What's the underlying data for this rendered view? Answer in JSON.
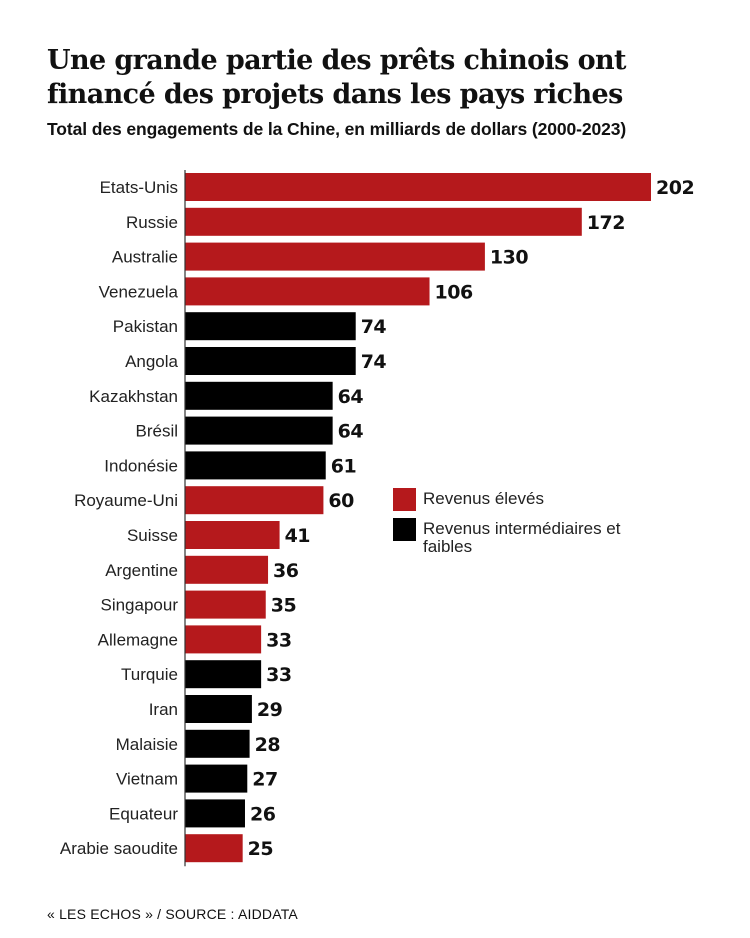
{
  "header": {
    "title": "Une grande partie des prêts chinois ont financé des projets dans les pays riches",
    "subtitle": "Total des engagements de la Chine, en milliards de dollars (2000-2023)"
  },
  "legend": {
    "items": [
      {
        "label": "Revenus élevés",
        "color": "#b5191c"
      },
      {
        "label": "Revenus intermédiaires et faibles",
        "color": "#000000"
      }
    ]
  },
  "footer": {
    "source": "« LES ECHOS » / SOURCE :  AIDDATA"
  },
  "chart_data": {
    "type": "bar",
    "orientation": "horizontal",
    "title": "Une grande partie des prêts chinois ont financé des projets dans les pays riches",
    "subtitle": "Total des engagements de la Chine, en milliards de dollars (2000-2023)",
    "xlabel": "",
    "ylabel": "",
    "xlim": [
      0,
      202
    ],
    "grid": false,
    "legend_position": "center-right",
    "colors": {
      "Revenus élevés": "#b5191c",
      "Revenus intermédiaires et faibles": "#000000"
    },
    "categories": [
      "Etats-Unis",
      "Russie",
      "Australie",
      "Venezuela",
      "Pakistan",
      "Angola",
      "Kazakhstan",
      "Brésil",
      "Indonésie",
      "Royaume-Uni",
      "Suisse",
      "Argentine",
      "Singapour",
      "Allemagne",
      "Turquie",
      "Iran",
      "Malaisie",
      "Vietnam",
      "Equateur",
      "Arabie saoudite"
    ],
    "values": [
      202,
      172,
      130,
      106,
      74,
      74,
      64,
      64,
      61,
      60,
      41,
      36,
      35,
      33,
      33,
      29,
      28,
      27,
      26,
      25
    ],
    "groups": [
      "Revenus élevés",
      "Revenus élevés",
      "Revenus élevés",
      "Revenus élevés",
      "Revenus intermédiaires et faibles",
      "Revenus intermédiaires et faibles",
      "Revenus intermédiaires et faibles",
      "Revenus intermédiaires et faibles",
      "Revenus intermédiaires et faibles",
      "Revenus élevés",
      "Revenus élevés",
      "Revenus élevés",
      "Revenus élevés",
      "Revenus élevés",
      "Revenus intermédiaires et faibles",
      "Revenus intermédiaires et faibles",
      "Revenus intermédiaires et faibles",
      "Revenus intermédiaires et faibles",
      "Revenus intermédiaires et faibles",
      "Revenus élevés"
    ]
  }
}
